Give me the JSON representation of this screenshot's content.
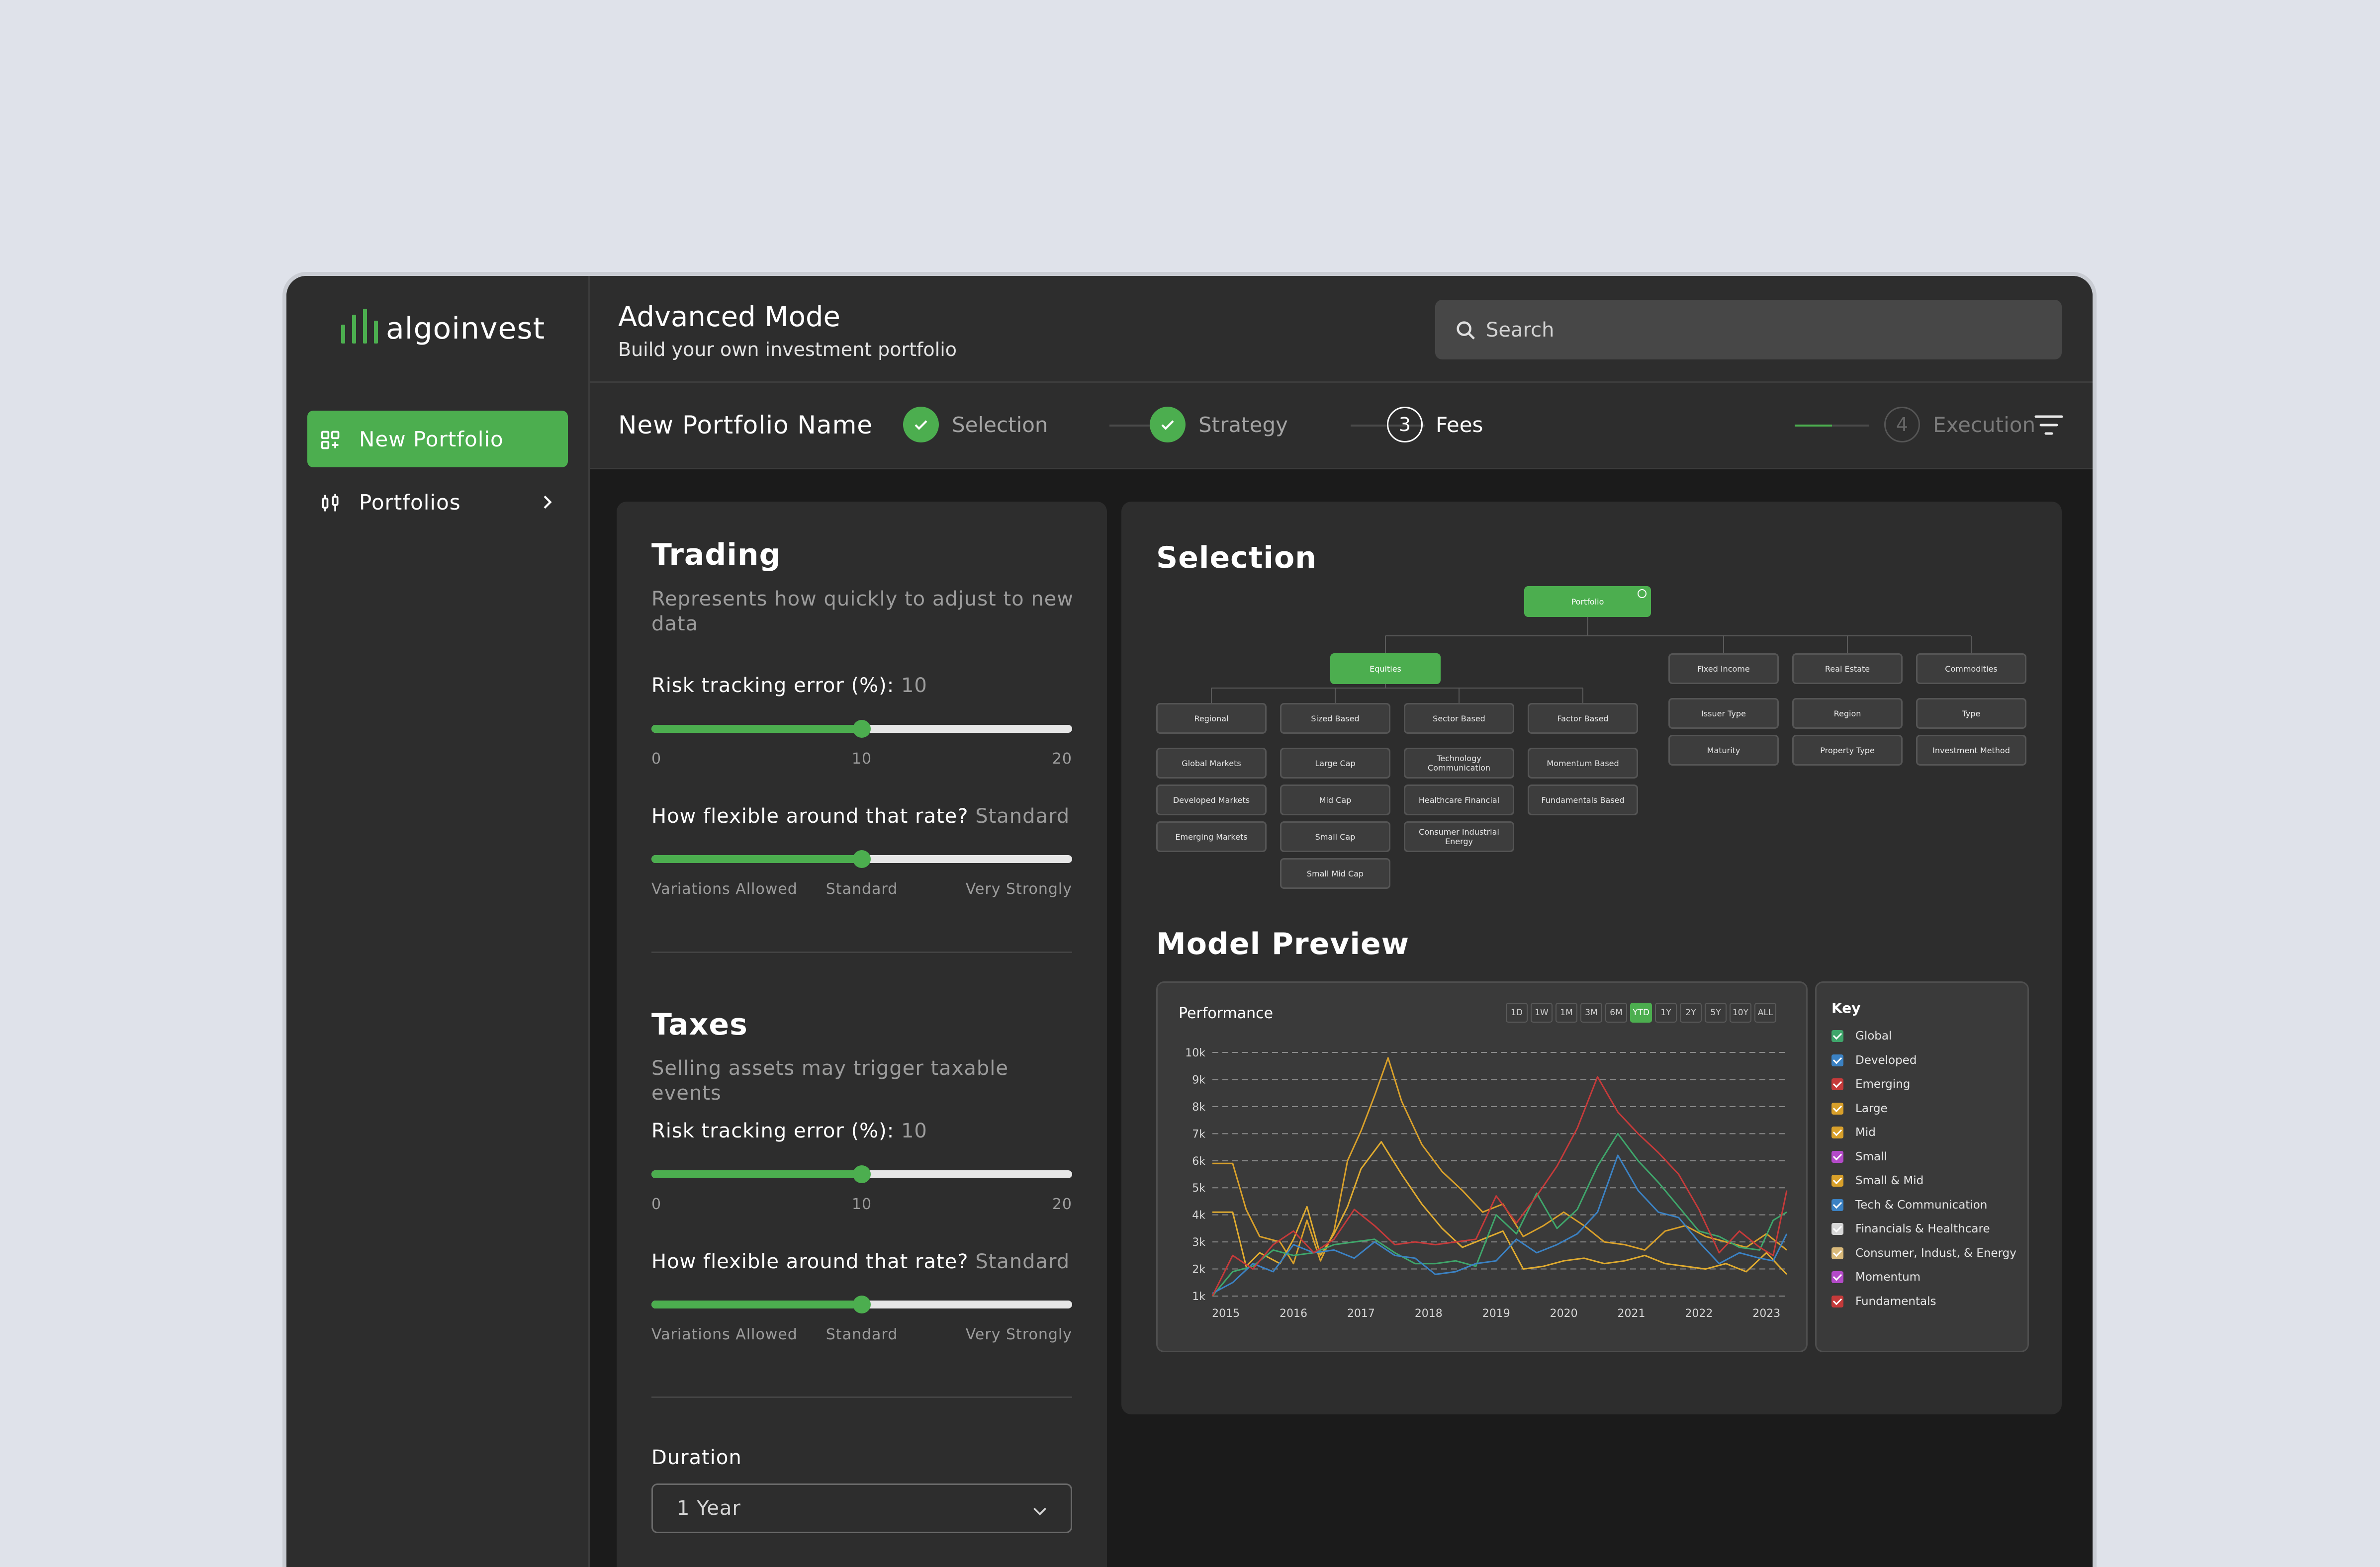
{
  "app": {
    "name": "algoinvest"
  },
  "sidebar": {
    "items": [
      {
        "label": "New Portfolio",
        "icon": "grid-plus-icon",
        "active": true
      },
      {
        "label": "Portfolios",
        "icon": "candlestick-icon",
        "active": false
      }
    ]
  },
  "header": {
    "title": "Advanced Mode",
    "subtitle": "Build your own investment portfolio",
    "search_placeholder": "Search"
  },
  "stepper": {
    "portfolio_name": "New Portfolio Name",
    "steps": [
      {
        "label": "Selection",
        "state": "done"
      },
      {
        "label": "Strategy",
        "state": "done"
      },
      {
        "label": "Fees",
        "number": "3",
        "state": "current"
      },
      {
        "label": "Execution",
        "number": "4",
        "state": "todo"
      }
    ]
  },
  "trading": {
    "title": "Trading",
    "description": "Represents how quickly to adjust to new data",
    "risk_label": "Risk tracking error (%):",
    "risk_value": "10",
    "risk_min": "0",
    "risk_mid": "10",
    "risk_max": "20",
    "risk_fraction": 0.5,
    "flex_label": "How flexible around that rate?",
    "flex_value": "Standard",
    "flex_ticks": [
      "Variations Allowed",
      "Standard",
      "Very Strongly"
    ],
    "flex_fraction": 0.5
  },
  "taxes": {
    "title": "Taxes",
    "description": "Selling assets may trigger taxable events",
    "risk_label": "Risk tracking error (%):",
    "risk_value": "10",
    "risk_min": "0",
    "risk_mid": "10",
    "risk_max": "20",
    "risk_fraction": 0.5,
    "flex_label": "How flexible around that rate?",
    "flex_value": "Standard",
    "flex_ticks": [
      "Variations Allowed",
      "Standard",
      "Very Strongly"
    ],
    "flex_fraction": 0.5
  },
  "duration": {
    "label": "Duration",
    "value": "1 Year"
  },
  "selection": {
    "title": "Selection",
    "root": "Portfolio",
    "equities": "Equities",
    "equity_groups": [
      {
        "label": "Regional",
        "children": [
          "Global Markets",
          "Developed Markets",
          "Emerging Markets"
        ]
      },
      {
        "label": "Sized Based",
        "children": [
          "Large Cap",
          "Mid Cap",
          "Small Cap",
          "Small Mid Cap"
        ]
      },
      {
        "label": "Sector Based",
        "children": [
          "Technology Communication",
          "Healthcare Financial",
          "Consumer Industrial Energy"
        ]
      },
      {
        "label": "Factor Based",
        "children": [
          "Momentum Based",
          "Fundamentals Based"
        ]
      }
    ],
    "other_classes": [
      {
        "label": "Fixed Income",
        "children": [
          "Issuer Type",
          "Maturity"
        ]
      },
      {
        "label": "Real Estate",
        "children": [
          "Region",
          "Property Type"
        ]
      },
      {
        "label": "Commodities",
        "children": [
          "Type",
          "Investment Method"
        ]
      }
    ]
  },
  "model_preview": {
    "title": "Model Preview",
    "chart_title": "Performance",
    "ranges": [
      "1D",
      "1W",
      "1M",
      "3M",
      "6M",
      "YTD",
      "1Y",
      "2Y",
      "5Y",
      "10Y",
      "ALL"
    ],
    "active_range": "YTD",
    "key_title": "Key",
    "key": [
      {
        "label": "Global",
        "color": "#3fa66b"
      },
      {
        "label": "Developed",
        "color": "#3b82c4"
      },
      {
        "label": "Emerging",
        "color": "#c53a3a"
      },
      {
        "label": "Large",
        "color": "#d9a02a"
      },
      {
        "label": "Mid",
        "color": "#d9a02a"
      },
      {
        "label": "Small",
        "color": "#b44ac9"
      },
      {
        "label": "Small & Mid",
        "color": "#d9a02a"
      },
      {
        "label": "Tech & Communication",
        "color": "#3b82c4"
      },
      {
        "label": "Financials & Healthcare",
        "color": "#d8d8d8"
      },
      {
        "label": "Consumer, Indust, & Energy",
        "color": "#d9b97a"
      },
      {
        "label": "Momentum",
        "color": "#b44ac9"
      },
      {
        "label": "Fundamentals",
        "color": "#c53a3a"
      }
    ]
  },
  "chart_data": {
    "type": "line",
    "title": "Performance",
    "ylim": [
      1000,
      10000
    ],
    "y_ticks": [
      "10k",
      "9k",
      "8k",
      "7k",
      "6k",
      "5k",
      "4k",
      "3k",
      "2k",
      "1k"
    ],
    "x_ticks": [
      "2015",
      "2016",
      "2017",
      "2018",
      "2019",
      "2020",
      "2021",
      "2022",
      "2023"
    ],
    "xlim": [
      2014.8,
      2023.3
    ],
    "grid": true,
    "series": [
      {
        "name": "Large",
        "color": "#d9a02a",
        "x": [
          2014.8,
          2015.1,
          2015.3,
          2015.5,
          2015.8,
          2016.0,
          2016.2,
          2016.4,
          2016.6,
          2016.8,
          2017.0,
          2017.2,
          2017.4,
          2017.6,
          2017.9,
          2018.2,
          2018.5,
          2018.8,
          2019.1,
          2019.4,
          2019.7,
          2020.0,
          2020.3,
          2020.6,
          2020.9,
          2021.2,
          2021.5,
          2021.8,
          2022.1,
          2022.4,
          2022.7,
          2023.0,
          2023.3
        ],
        "y": [
          5900,
          5900,
          4200,
          3200,
          3000,
          2200,
          3800,
          2300,
          3400,
          6000,
          7100,
          8400,
          9800,
          8200,
          6600,
          5600,
          4900,
          4100,
          4400,
          3200,
          3600,
          4100,
          3600,
          3000,
          2900,
          2700,
          3400,
          3600,
          3200,
          3000,
          2800,
          3300,
          2700
        ]
      },
      {
        "name": "Mid",
        "color": "#e0ab2f",
        "x": [
          2014.8,
          2015.1,
          2015.3,
          2015.5,
          2015.8,
          2016.0,
          2016.2,
          2016.4,
          2016.6,
          2016.8,
          2017.0,
          2017.3,
          2017.6,
          2017.9,
          2018.2,
          2018.5,
          2018.8,
          2019.1,
          2019.4,
          2019.7,
          2020.0,
          2020.3,
          2020.6,
          2020.9,
          2021.2,
          2021.5,
          2021.8,
          2022.1,
          2022.4,
          2022.7,
          2023.0,
          2023.3
        ],
        "y": [
          4100,
          4100,
          2100,
          2600,
          2200,
          3100,
          4300,
          2500,
          3300,
          4300,
          5700,
          6700,
          5500,
          4400,
          3500,
          2800,
          3100,
          3400,
          2000,
          2100,
          2300,
          2400,
          2200,
          2300,
          2500,
          2200,
          2100,
          2000,
          2200,
          1900,
          2600,
          1800
        ]
      },
      {
        "name": "Global",
        "color": "#3fa66b",
        "x": [
          2014.8,
          2015.1,
          2015.4,
          2015.7,
          2016.0,
          2016.3,
          2016.6,
          2016.9,
          2017.2,
          2017.5,
          2017.8,
          2018.1,
          2018.4,
          2018.7,
          2019.0,
          2019.3,
          2019.6,
          2019.9,
          2020.2,
          2020.5,
          2020.8,
          2021.1,
          2021.4,
          2021.7,
          2022.0,
          2022.3,
          2022.6,
          2022.9,
          2023.1,
          2023.3
        ],
        "y": [
          1000,
          1900,
          2100,
          2700,
          2500,
          2600,
          2900,
          3000,
          3100,
          2600,
          2200,
          2200,
          2300,
          2100,
          4000,
          3300,
          4800,
          3500,
          4200,
          5800,
          7000,
          6000,
          5200,
          4300,
          3400,
          3200,
          2800,
          2700,
          3800,
          4100
        ]
      },
      {
        "name": "Developed",
        "color": "#3b82c4",
        "x": [
          2014.8,
          2015.1,
          2015.4,
          2015.7,
          2016.0,
          2016.3,
          2016.6,
          2016.9,
          2017.2,
          2017.5,
          2017.8,
          2018.1,
          2018.4,
          2018.7,
          2019.0,
          2019.3,
          2019.6,
          2019.9,
          2020.2,
          2020.5,
          2020.8,
          2021.1,
          2021.4,
          2021.7,
          2022.0,
          2022.3,
          2022.6,
          2022.9,
          2023.1,
          2023.3
        ],
        "y": [
          1100,
          1500,
          2200,
          1900,
          2900,
          2600,
          2700,
          2400,
          3000,
          2500,
          2400,
          1800,
          1900,
          2200,
          2300,
          3100,
          2600,
          2900,
          3300,
          4100,
          6200,
          4900,
          4100,
          3900,
          3000,
          2200,
          2600,
          2400,
          2300,
          3300
        ]
      },
      {
        "name": "Emerging",
        "color": "#c53a3a",
        "x": [
          2014.8,
          2015.1,
          2015.4,
          2015.7,
          2016.0,
          2016.3,
          2016.6,
          2016.9,
          2017.2,
          2017.5,
          2017.8,
          2018.1,
          2018.4,
          2018.7,
          2019.0,
          2019.3,
          2019.6,
          2019.9,
          2020.2,
          2020.5,
          2020.8,
          2021.1,
          2021.4,
          2021.7,
          2022.0,
          2022.3,
          2022.6,
          2022.9,
          2023.1,
          2023.3
        ],
        "y": [
          1000,
          2500,
          2000,
          2900,
          3400,
          2600,
          3100,
          4200,
          3600,
          2900,
          3000,
          2900,
          3000,
          3100,
          4700,
          3700,
          4700,
          5800,
          7200,
          9100,
          7800,
          7000,
          6300,
          5500,
          4200,
          2600,
          3400,
          2800,
          2500,
          4900
        ]
      }
    ]
  }
}
